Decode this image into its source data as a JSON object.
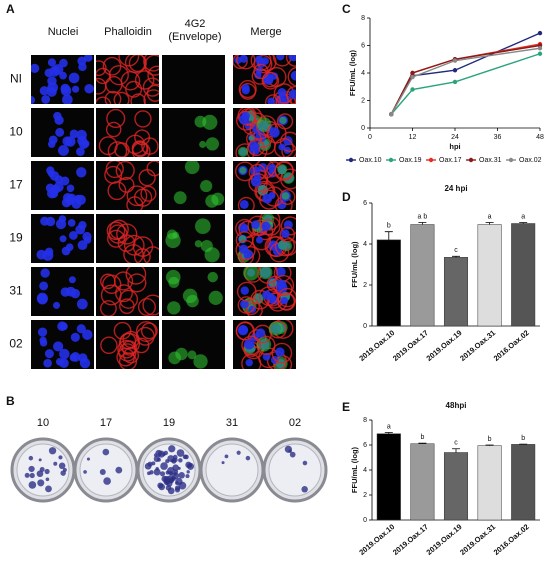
{
  "panel_labels": [
    "A",
    "B",
    "C",
    "D",
    "E"
  ],
  "panel_a": {
    "columns": [
      "Nuclei",
      "Phalloidin",
      "4G2",
      "(Envelope)",
      "Merge"
    ],
    "rows": [
      "NI",
      "10",
      "17",
      "19",
      "31",
      "02"
    ]
  },
  "panel_b": {
    "labels": [
      "10",
      "17",
      "19",
      "31",
      "02"
    ]
  },
  "chart_data": [
    {
      "type": "line",
      "x_label": "hpi",
      "y_label": "FFU/mL (log)",
      "x": [
        6,
        12,
        24,
        48
      ],
      "xlim": [
        0,
        48
      ],
      "xticks": [
        0,
        12,
        24,
        36,
        48
      ],
      "ylim": [
        0,
        8
      ],
      "yticks": [
        0,
        2,
        4,
        6,
        8
      ],
      "series": [
        {
          "name": "Oax.10",
          "color": "#1f2a7a",
          "values": [
            1,
            3.8,
            4.2,
            6.9
          ]
        },
        {
          "name": "Oax.19",
          "color": "#2aa57a",
          "values": [
            1,
            2.8,
            3.35,
            5.4
          ]
        },
        {
          "name": "Oax.17",
          "color": "#e03020",
          "values": [
            1,
            4.0,
            5.0,
            6.1
          ]
        },
        {
          "name": "Oax.31",
          "color": "#8b1a1a",
          "values": [
            1,
            4.0,
            5.0,
            6.0
          ]
        },
        {
          "name": "Oax.02",
          "color": "#888888",
          "values": [
            1,
            3.7,
            4.9,
            5.8
          ]
        }
      ]
    },
    {
      "type": "bar",
      "title": "24 hpi",
      "y_label": "FFU/mL (log)",
      "categories": [
        "2019.Oax.10",
        "2019.Oax.17",
        "2019.Oax.19",
        "2019.Oax.31",
        "2016.Oax.02"
      ],
      "values": [
        4.2,
        4.95,
        3.35,
        4.95,
        5.0
      ],
      "errors": [
        0.4,
        0.1,
        0.05,
        0.1,
        0.05
      ],
      "annotations": [
        "b",
        "a b",
        "c",
        "a",
        "a"
      ],
      "colors": [
        "#000000",
        "#9a9a9a",
        "#666666",
        "#dddddd",
        "#555555"
      ],
      "ylim": [
        0,
        6
      ],
      "yticks": [
        0,
        2,
        4,
        6
      ]
    },
    {
      "type": "bar",
      "title": "48hpi",
      "y_label": "FFU/mL (log)",
      "categories": [
        "2019.Oax.10",
        "2019.Oax.17",
        "2019.Oax.19",
        "2019.Oax.31",
        "2016.Oax.02"
      ],
      "values": [
        6.9,
        6.1,
        5.4,
        5.95,
        6.05
      ],
      "errors": [
        0.1,
        0.05,
        0.3,
        0.05,
        0.02
      ],
      "annotations": [
        "a",
        "b",
        "c",
        "b",
        "b"
      ],
      "colors": [
        "#000000",
        "#9a9a9a",
        "#666666",
        "#dddddd",
        "#555555"
      ],
      "ylim": [
        0,
        8
      ],
      "yticks": [
        0,
        2,
        4,
        6,
        8
      ]
    }
  ]
}
